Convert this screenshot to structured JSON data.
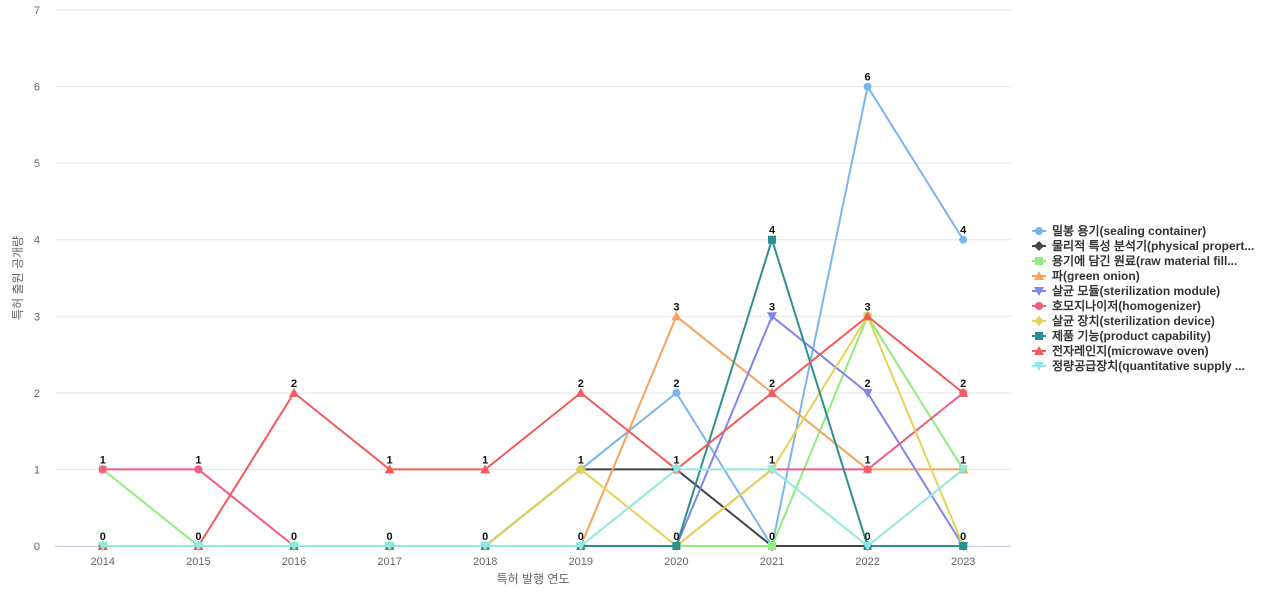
{
  "chart_data": {
    "type": "line",
    "xlabel": "특허 발행 연도",
    "ylabel": "특허 출원 공개량",
    "ylim": [
      0,
      7
    ],
    "yticks": [
      0,
      1,
      2,
      3,
      4,
      5,
      6,
      7
    ],
    "grid": true,
    "legend_position": "right",
    "categories": [
      "2014",
      "2015",
      "2016",
      "2017",
      "2018",
      "2019",
      "2020",
      "2021",
      "2022",
      "2023"
    ],
    "series": [
      {
        "name": "밀봉 용기(sealing container)",
        "color": "#7cb5ec",
        "marker": "circle",
        "values": [
          0,
          0,
          0,
          0,
          0,
          1,
          2,
          0,
          6,
          4
        ]
      },
      {
        "name": "물리적 특성 분석기(physical propert...",
        "color": "#434348",
        "marker": "diamond",
        "values": [
          0,
          0,
          0,
          0,
          0,
          1,
          1,
          0,
          0,
          0
        ]
      },
      {
        "name": "용기에 담긴 원료(raw material fill...",
        "color": "#90ed7d",
        "marker": "square",
        "values": [
          1,
          0,
          0,
          0,
          0,
          0,
          0,
          0,
          3,
          1
        ]
      },
      {
        "name": "파(green onion)",
        "color": "#f7a35c",
        "marker": "triangle",
        "values": [
          0,
          0,
          0,
          0,
          0,
          0,
          3,
          2,
          1,
          1
        ]
      },
      {
        "name": "살균 모듈(sterilization module)",
        "color": "#8085e9",
        "marker": "triangle-down",
        "values": [
          0,
          0,
          0,
          0,
          0,
          0,
          0,
          3,
          2,
          0
        ]
      },
      {
        "name": "호모지나이저(homogenizer)",
        "color": "#f15c80",
        "marker": "circle",
        "values": [
          1,
          1,
          0,
          0,
          0,
          0,
          0,
          1,
          1,
          2
        ]
      },
      {
        "name": "살균 장치(sterilization device)",
        "color": "#e4d354",
        "marker": "diamond",
        "values": [
          0,
          0,
          0,
          0,
          0,
          1,
          0,
          1,
          3,
          0
        ]
      },
      {
        "name": "제품 기능(product capability)",
        "color": "#2b908f",
        "marker": "square",
        "values": [
          0,
          0,
          0,
          0,
          0,
          0,
          0,
          4,
          0,
          0
        ]
      },
      {
        "name": "전자레인지(microwave oven)",
        "color": "#f45b5b",
        "marker": "triangle",
        "values": [
          0,
          0,
          2,
          1,
          1,
          2,
          1,
          2,
          3,
          2
        ]
      },
      {
        "name": "정량공급장치(quantitative supply ...",
        "color": "#91e8e1",
        "marker": "triangle-down",
        "values": [
          0,
          0,
          0,
          0,
          0,
          0,
          1,
          1,
          0,
          1
        ]
      }
    ],
    "data_labels": [
      {
        "x": "2014",
        "y": 1,
        "label": "1"
      },
      {
        "x": "2014",
        "y": 0,
        "label": "0"
      },
      {
        "x": "2015",
        "y": 1,
        "label": "1"
      },
      {
        "x": "2015",
        "y": 0,
        "label": "0"
      },
      {
        "x": "2016",
        "y": 2,
        "label": "2"
      },
      {
        "x": "2016",
        "y": 0,
        "label": "0"
      },
      {
        "x": "2017",
        "y": 1,
        "label": "1"
      },
      {
        "x": "2017",
        "y": 0,
        "label": "0"
      },
      {
        "x": "2018",
        "y": 1,
        "label": "1"
      },
      {
        "x": "2018",
        "y": 0,
        "label": "0"
      },
      {
        "x": "2019",
        "y": 2,
        "label": "2"
      },
      {
        "x": "2019",
        "y": 1,
        "label": "1"
      },
      {
        "x": "2019",
        "y": 0,
        "label": "0"
      },
      {
        "x": "2020",
        "y": 3,
        "label": "3"
      },
      {
        "x": "2020",
        "y": 2,
        "label": "2"
      },
      {
        "x": "2020",
        "y": 1,
        "label": "1"
      },
      {
        "x": "2020",
        "y": 0,
        "label": "0"
      },
      {
        "x": "2021",
        "y": 4,
        "label": "4"
      },
      {
        "x": "2021",
        "y": 3,
        "label": "3"
      },
      {
        "x": "2021",
        "y": 2,
        "label": "2"
      },
      {
        "x": "2021",
        "y": 1,
        "label": "1"
      },
      {
        "x": "2021",
        "y": 0,
        "label": "0"
      },
      {
        "x": "2022",
        "y": 6,
        "label": "6"
      },
      {
        "x": "2022",
        "y": 3,
        "label": "3"
      },
      {
        "x": "2022",
        "y": 2,
        "label": "2"
      },
      {
        "x": "2022",
        "y": 1,
        "label": "1"
      },
      {
        "x": "2022",
        "y": 0,
        "label": "0"
      },
      {
        "x": "2023",
        "y": 4,
        "label": "4"
      },
      {
        "x": "2023",
        "y": 2,
        "label": "2"
      },
      {
        "x": "2023",
        "y": 1,
        "label": "1"
      },
      {
        "x": "2023",
        "y": 0,
        "label": "0"
      }
    ]
  }
}
